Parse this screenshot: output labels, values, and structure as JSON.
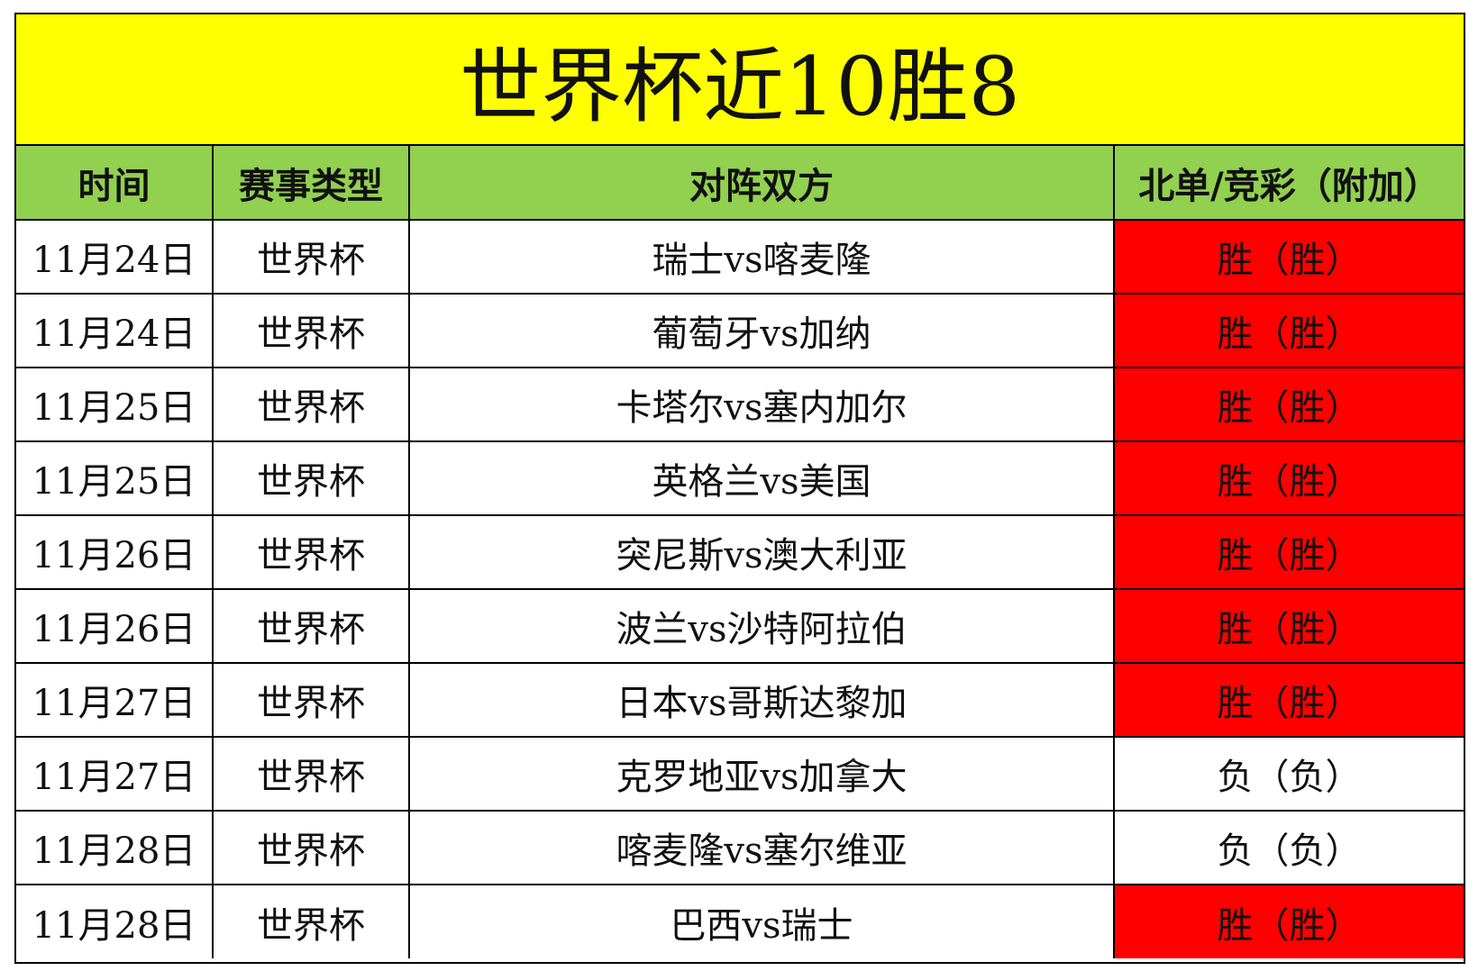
{
  "title": "世界杯近10胜8",
  "colors": {
    "title_bg": "#ffff00",
    "header_bg": "#92d050",
    "win_bg": "#ff0000",
    "lose_bg": "#ffffff"
  },
  "headers": [
    "时间",
    "赛事类型",
    "对阵双方",
    "北单/竞彩（附加）"
  ],
  "rows": [
    {
      "date": "11月24日",
      "type": "世界杯",
      "match": "瑞士vs喀麦隆",
      "result": "胜（胜）",
      "win": true
    },
    {
      "date": "11月24日",
      "type": "世界杯",
      "match": "葡萄牙vs加纳",
      "result": "胜（胜）",
      "win": true
    },
    {
      "date": "11月25日",
      "type": "世界杯",
      "match": "卡塔尔vs塞内加尔",
      "result": "胜（胜）",
      "win": true
    },
    {
      "date": "11月25日",
      "type": "世界杯",
      "match": "英格兰vs美国",
      "result": "胜（胜）",
      "win": true
    },
    {
      "date": "11月26日",
      "type": "世界杯",
      "match": "突尼斯vs澳大利亚",
      "result": "胜（胜）",
      "win": true
    },
    {
      "date": "11月26日",
      "type": "世界杯",
      "match": "波兰vs沙特阿拉伯",
      "result": "胜（胜）",
      "win": true
    },
    {
      "date": "11月27日",
      "type": "世界杯",
      "match": "日本vs哥斯达黎加",
      "result": "胜（胜）",
      "win": true
    },
    {
      "date": "11月27日",
      "type": "世界杯",
      "match": "克罗地亚vs加拿大",
      "result": "负（负）",
      "win": false
    },
    {
      "date": "11月28日",
      "type": "世界杯",
      "match": "喀麦隆vs塞尔维亚",
      "result": "负（负）",
      "win": false
    },
    {
      "date": "11月28日",
      "type": "世界杯",
      "match": "巴西vs瑞士",
      "result": "胜（胜）",
      "win": true
    }
  ]
}
